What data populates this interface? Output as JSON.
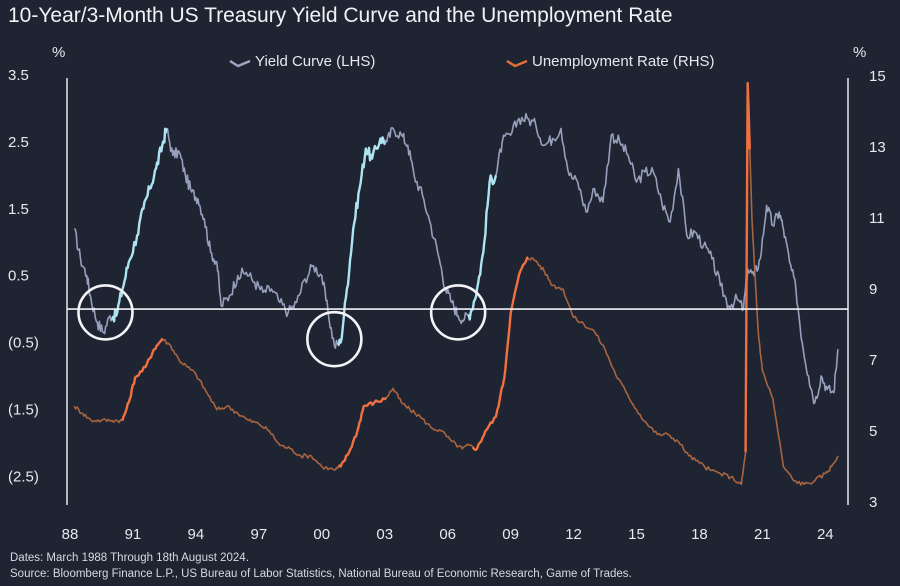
{
  "chart_data": {
    "type": "line",
    "title": "10-Year/3-Month US Treasury Yield Curve and the Unemployment Rate",
    "y_left_unit": "%",
    "y_right_unit": "%",
    "y_left_ticks": [
      "3.5",
      "2.5",
      "1.5",
      "0.5",
      "(0.5)",
      "(1.5)",
      "(2.5)"
    ],
    "y_left_tick_values": [
      3.5,
      2.5,
      1.5,
      0.5,
      -0.5,
      -1.5,
      -2.5
    ],
    "y_right_ticks": [
      "15",
      "13",
      "11",
      "9",
      "7",
      "5",
      "3"
    ],
    "y_right_tick_values": [
      15,
      13,
      11,
      9,
      7,
      5,
      3
    ],
    "x_ticks": [
      "88",
      "91",
      "94",
      "97",
      "00",
      "03",
      "06",
      "09",
      "12",
      "15",
      "18",
      "21",
      "24"
    ],
    "x_tick_years": [
      1988,
      1991,
      1994,
      1997,
      2000,
      2003,
      2006,
      2009,
      2012,
      2015,
      2018,
      2021,
      2024
    ],
    "ylim_left": [
      -2.9,
      3.5
    ],
    "ylim_right": [
      3,
      15
    ],
    "xlim": [
      1988,
      2024.7
    ],
    "zero_line": 0,
    "inversion_circles_years": [
      1989.5,
      2000.6,
      2006.5
    ],
    "series": [
      {
        "name": "Yield Curve (LHS)",
        "axis": "left",
        "color": "#9ea6c4",
        "highlight_color": "#aee4f2",
        "highlight_ranges": [
          [
            1990.0,
            1992.6
          ],
          [
            2000.8,
            2003.0
          ],
          [
            2007.0,
            2008.3
          ]
        ],
        "points": [
          [
            1988.2,
            1.2
          ],
          [
            1988.5,
            0.75
          ],
          [
            1988.8,
            0.5
          ],
          [
            1989.0,
            0.15
          ],
          [
            1989.3,
            -0.2
          ],
          [
            1989.6,
            -0.35
          ],
          [
            1989.9,
            -0.1
          ],
          [
            1990.2,
            -0.1
          ],
          [
            1990.5,
            0.3
          ],
          [
            1990.8,
            0.7
          ],
          [
            1991.2,
            1.1
          ],
          [
            1991.5,
            1.5
          ],
          [
            1991.8,
            1.8
          ],
          [
            1992.1,
            2.1
          ],
          [
            1992.4,
            2.45
          ],
          [
            1992.6,
            2.7
          ],
          [
            1992.9,
            2.3
          ],
          [
            1993.2,
            2.35
          ],
          [
            1993.5,
            2.0
          ],
          [
            1993.8,
            1.75
          ],
          [
            1994.1,
            1.65
          ],
          [
            1994.4,
            1.35
          ],
          [
            1994.7,
            0.85
          ],
          [
            1995.0,
            0.7
          ],
          [
            1995.2,
            0.05
          ],
          [
            1995.6,
            0.2
          ],
          [
            1996.0,
            0.5
          ],
          [
            1996.4,
            0.55
          ],
          [
            1996.8,
            0.4
          ],
          [
            1997.2,
            0.25
          ],
          [
            1997.6,
            0.3
          ],
          [
            1998.0,
            0.1
          ],
          [
            1998.4,
            -0.05
          ],
          [
            1998.8,
            0.1
          ],
          [
            1999.2,
            0.45
          ],
          [
            1999.6,
            0.65
          ],
          [
            2000.0,
            0.5
          ],
          [
            2000.3,
            -0.05
          ],
          [
            2000.6,
            -0.55
          ],
          [
            2000.9,
            -0.5
          ],
          [
            2001.2,
            0.3
          ],
          [
            2001.5,
            1.2
          ],
          [
            2001.8,
            1.8
          ],
          [
            2002.1,
            2.4
          ],
          [
            2002.4,
            2.25
          ],
          [
            2002.8,
            2.55
          ],
          [
            2003.1,
            2.5
          ],
          [
            2003.4,
            2.7
          ],
          [
            2003.8,
            2.6
          ],
          [
            2004.1,
            2.45
          ],
          [
            2004.4,
            2.0
          ],
          [
            2004.8,
            1.7
          ],
          [
            2005.2,
            1.25
          ],
          [
            2005.6,
            0.75
          ],
          [
            2005.9,
            0.3
          ],
          [
            2006.2,
            0.1
          ],
          [
            2006.5,
            -0.1
          ],
          [
            2006.8,
            -0.15
          ],
          [
            2007.1,
            -0.05
          ],
          [
            2007.4,
            0.3
          ],
          [
            2007.7,
            0.85
          ],
          [
            2008.0,
            1.9
          ],
          [
            2008.3,
            2.0
          ],
          [
            2008.6,
            2.5
          ],
          [
            2009.0,
            2.6
          ],
          [
            2009.4,
            2.85
          ],
          [
            2009.8,
            2.85
          ],
          [
            2010.2,
            2.75
          ],
          [
            2010.6,
            2.45
          ],
          [
            2011.0,
            2.55
          ],
          [
            2011.4,
            2.7
          ],
          [
            2011.8,
            2.0
          ],
          [
            2012.2,
            1.9
          ],
          [
            2012.6,
            1.45
          ],
          [
            2013.0,
            1.8
          ],
          [
            2013.4,
            1.6
          ],
          [
            2013.8,
            2.6
          ],
          [
            2014.2,
            2.5
          ],
          [
            2014.6,
            2.3
          ],
          [
            2015.0,
            1.9
          ],
          [
            2015.4,
            2.05
          ],
          [
            2015.8,
            2.05
          ],
          [
            2016.2,
            1.6
          ],
          [
            2016.6,
            1.3
          ],
          [
            2017.0,
            2.1
          ],
          [
            2017.4,
            1.1
          ],
          [
            2017.8,
            1.15
          ],
          [
            2018.2,
            0.95
          ],
          [
            2018.6,
            0.75
          ],
          [
            2019.0,
            0.35
          ],
          [
            2019.4,
            0.05
          ],
          [
            2019.8,
            0.15
          ],
          [
            2020.1,
            0.0
          ],
          [
            2020.3,
            0.6
          ],
          [
            2020.6,
            0.5
          ],
          [
            2020.9,
            0.75
          ],
          [
            2021.2,
            1.55
          ],
          [
            2021.5,
            1.25
          ],
          [
            2021.8,
            1.45
          ],
          [
            2022.0,
            1.2
          ],
          [
            2022.3,
            0.7
          ],
          [
            2022.6,
            0.3
          ],
          [
            2022.9,
            -0.5
          ],
          [
            2023.2,
            -1.0
          ],
          [
            2023.5,
            -1.4
          ],
          [
            2023.8,
            -1.0
          ],
          [
            2024.1,
            -1.2
          ],
          [
            2024.4,
            -1.25
          ],
          [
            2024.6,
            -0.6
          ]
        ]
      },
      {
        "name": "Unemployment Rate (RHS)",
        "axis": "right",
        "color": "#b06840",
        "highlight_color": "#f07040",
        "highlight_ranges": [
          [
            1990.5,
            1992.4
          ],
          [
            2000.8,
            2003.1
          ],
          [
            2007.2,
            2009.8
          ],
          [
            2020.2,
            2020.4
          ]
        ],
        "points": [
          [
            1988.2,
            5.7
          ],
          [
            1988.6,
            5.5
          ],
          [
            1989.0,
            5.3
          ],
          [
            1989.5,
            5.3
          ],
          [
            1990.0,
            5.3
          ],
          [
            1990.5,
            5.3
          ],
          [
            1990.8,
            5.8
          ],
          [
            1991.1,
            6.5
          ],
          [
            1991.6,
            6.8
          ],
          [
            1992.0,
            7.3
          ],
          [
            1992.4,
            7.6
          ],
          [
            1992.8,
            7.4
          ],
          [
            1993.2,
            7.0
          ],
          [
            1993.6,
            6.8
          ],
          [
            1994.0,
            6.6
          ],
          [
            1994.5,
            6.1
          ],
          [
            1995.0,
            5.6
          ],
          [
            1995.5,
            5.7
          ],
          [
            1996.0,
            5.5
          ],
          [
            1996.5,
            5.3
          ],
          [
            1997.0,
            5.2
          ],
          [
            1997.5,
            5.0
          ],
          [
            1998.0,
            4.6
          ],
          [
            1998.5,
            4.5
          ],
          [
            1999.0,
            4.3
          ],
          [
            1999.5,
            4.3
          ],
          [
            2000.0,
            4.0
          ],
          [
            2000.6,
            3.9
          ],
          [
            2000.9,
            4.0
          ],
          [
            2001.3,
            4.4
          ],
          [
            2001.7,
            5.0
          ],
          [
            2002.0,
            5.7
          ],
          [
            2002.5,
            5.8
          ],
          [
            2003.0,
            5.9
          ],
          [
            2003.4,
            6.2
          ],
          [
            2003.8,
            5.8
          ],
          [
            2004.2,
            5.6
          ],
          [
            2004.7,
            5.4
          ],
          [
            2005.2,
            5.1
          ],
          [
            2005.7,
            5.0
          ],
          [
            2006.2,
            4.7
          ],
          [
            2006.7,
            4.5
          ],
          [
            2007.0,
            4.6
          ],
          [
            2007.4,
            4.5
          ],
          [
            2007.8,
            5.0
          ],
          [
            2008.3,
            5.4
          ],
          [
            2008.7,
            6.5
          ],
          [
            2009.0,
            8.3
          ],
          [
            2009.4,
            9.4
          ],
          [
            2009.8,
            9.9
          ],
          [
            2010.2,
            9.8
          ],
          [
            2010.6,
            9.5
          ],
          [
            2011.0,
            9.1
          ],
          [
            2011.5,
            9.0
          ],
          [
            2012.0,
            8.2
          ],
          [
            2012.5,
            8.0
          ],
          [
            2013.0,
            7.8
          ],
          [
            2013.5,
            7.3
          ],
          [
            2014.0,
            6.6
          ],
          [
            2014.5,
            6.1
          ],
          [
            2015.0,
            5.6
          ],
          [
            2015.5,
            5.2
          ],
          [
            2016.0,
            4.9
          ],
          [
            2016.5,
            4.9
          ],
          [
            2017.0,
            4.7
          ],
          [
            2017.5,
            4.3
          ],
          [
            2018.0,
            4.1
          ],
          [
            2018.5,
            3.9
          ],
          [
            2019.0,
            3.8
          ],
          [
            2019.5,
            3.7
          ],
          [
            2020.0,
            3.5
          ],
          [
            2020.2,
            4.4
          ],
          [
            2020.3,
            14.8
          ],
          [
            2020.5,
            11.0
          ],
          [
            2020.8,
            7.8
          ],
          [
            2021.0,
            6.7
          ],
          [
            2021.5,
            5.9
          ],
          [
            2022.0,
            4.0
          ],
          [
            2022.5,
            3.6
          ],
          [
            2023.0,
            3.5
          ],
          [
            2023.5,
            3.6
          ],
          [
            2024.0,
            3.8
          ],
          [
            2024.3,
            4.0
          ],
          [
            2024.6,
            4.3
          ]
        ]
      }
    ],
    "legend_placement": "top-center",
    "grid": false
  },
  "footnotes": {
    "dates": "Dates: March 1988 Through 18th August 2024.",
    "source": "Source: Bloomberg Finance L.P., US Bureau of Labor Statistics, National Bureau of Economic Research, Game of Trades."
  }
}
